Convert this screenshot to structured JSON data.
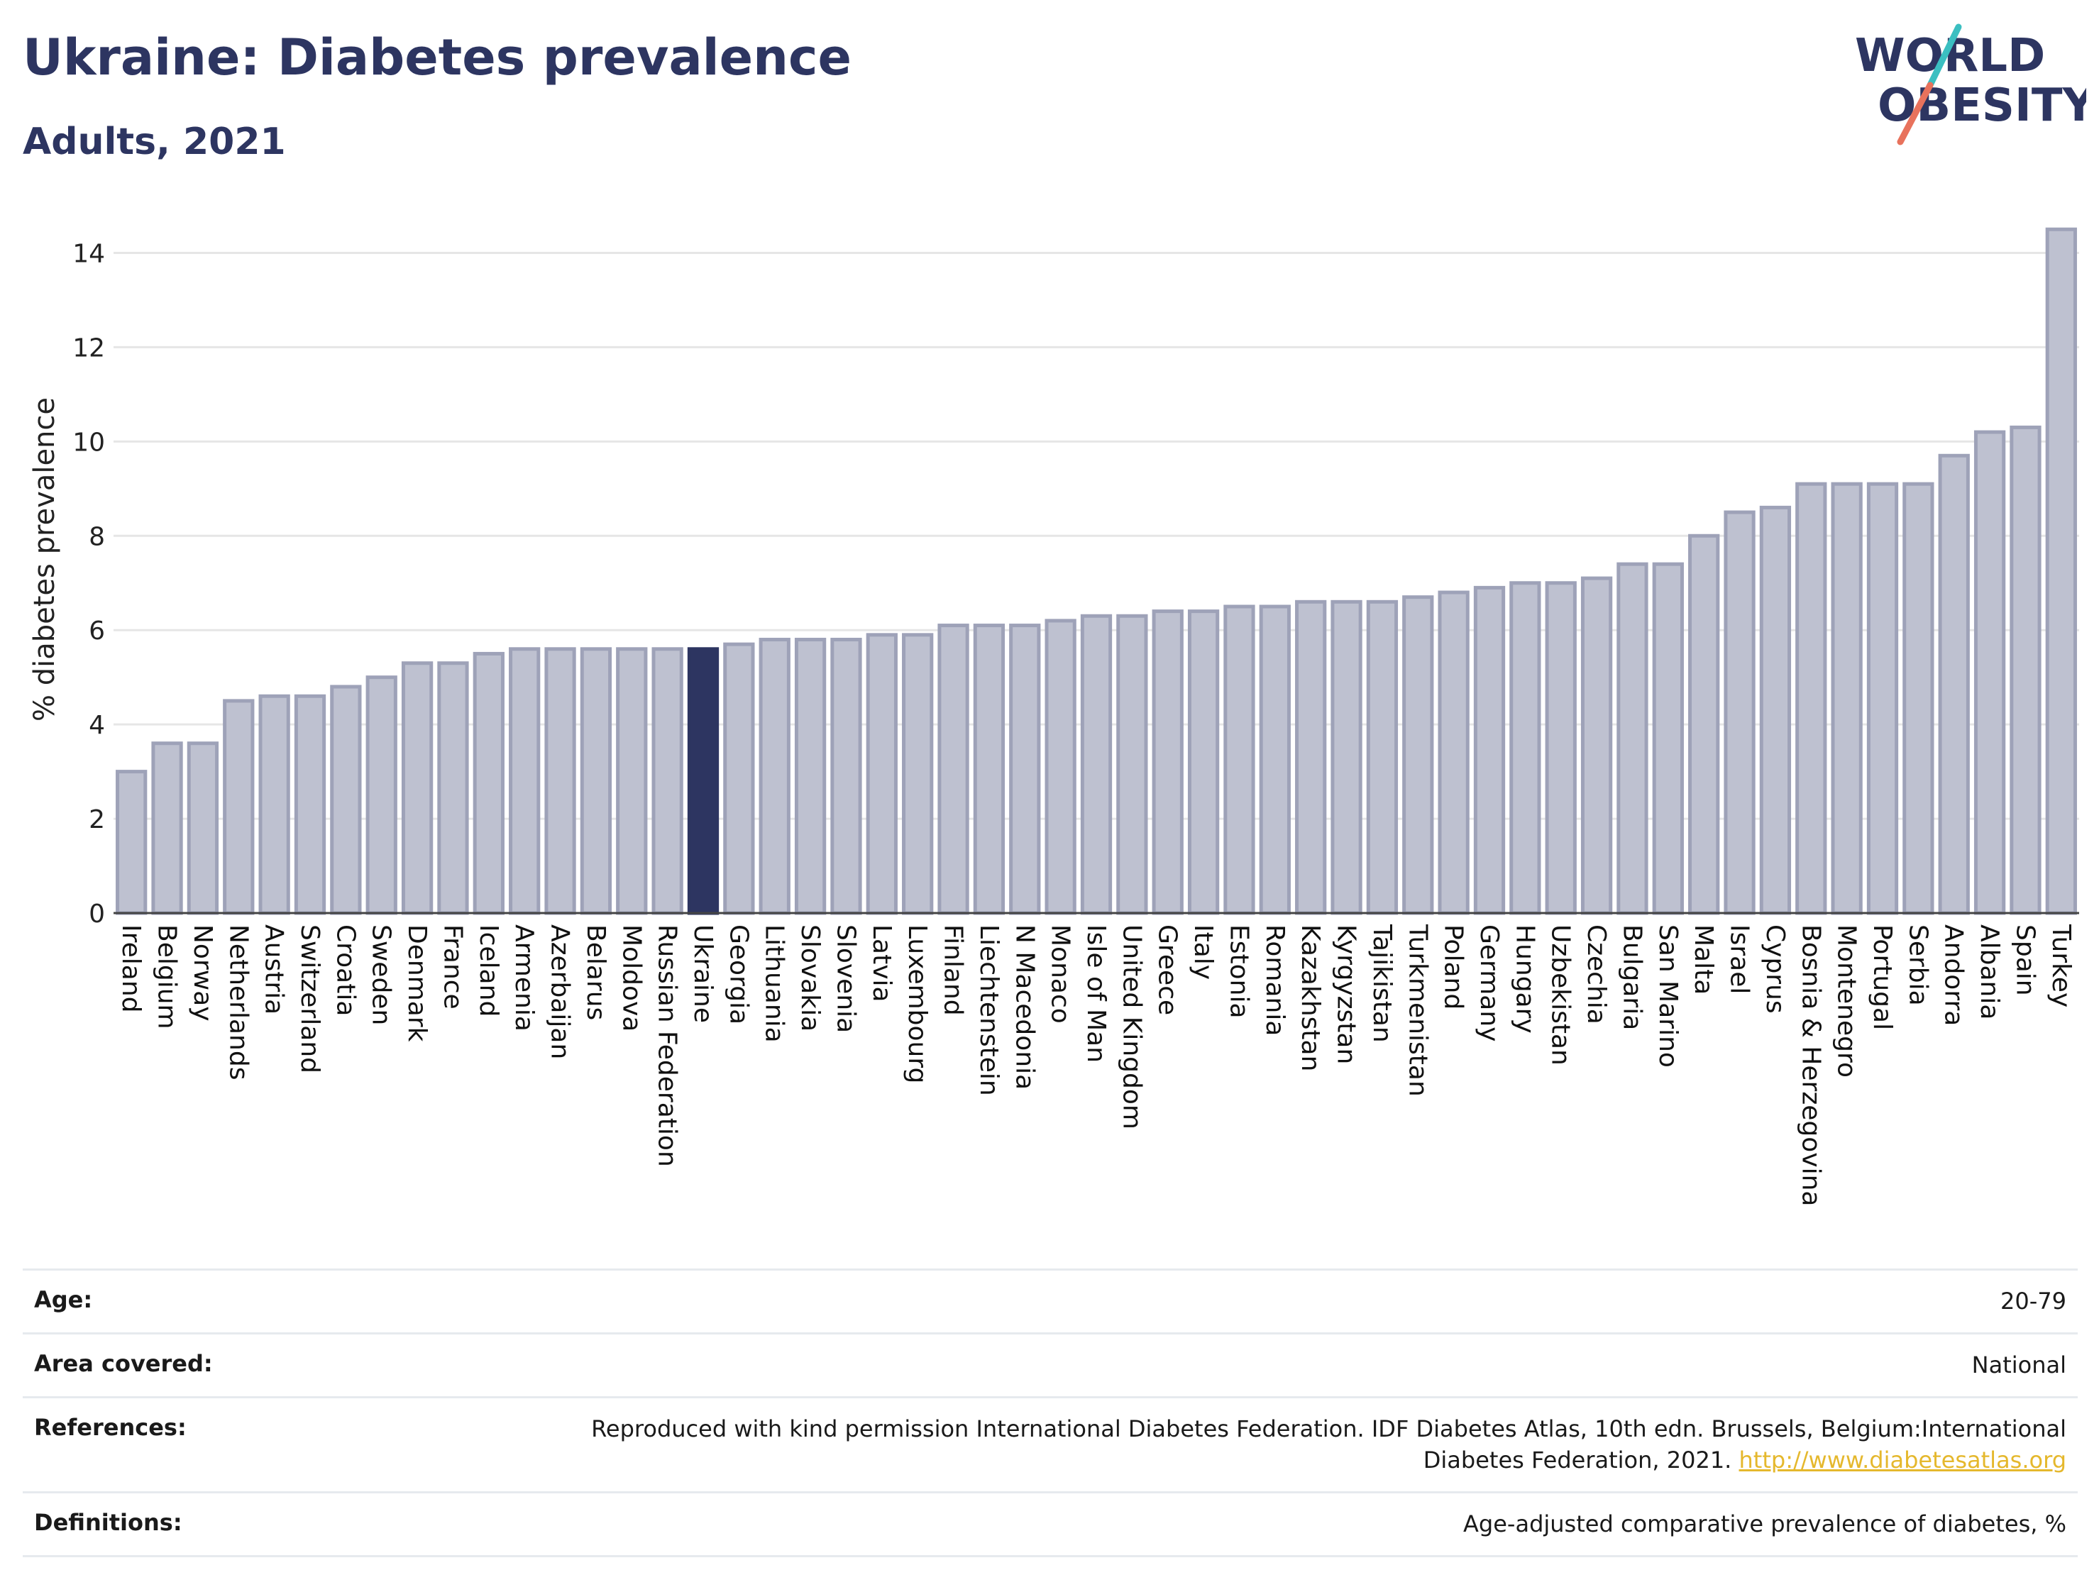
{
  "header": {
    "title": "Ukraine: Diabetes prevalence",
    "subtitle": "Adults, 2021"
  },
  "logo": {
    "line1": "WORLD",
    "line2": "OBESITY",
    "colors": {
      "text": "#2d3561",
      "teal": "#3bbfc1",
      "coral": "#e8725c"
    }
  },
  "chart_data": {
    "type": "bar",
    "title": "Ukraine: Diabetes prevalence",
    "subtitle": "Adults, 2021",
    "xlabel": "",
    "ylabel": "% diabetes prevalence",
    "ylim": [
      0,
      15
    ],
    "yticks": [
      0,
      2,
      4,
      6,
      8,
      10,
      12,
      14
    ],
    "grid": true,
    "highlight": "Ukraine",
    "colors": {
      "bar": "#bec1d0",
      "bar_edge": "#9ea2b8",
      "highlight": "#2d3561",
      "grid": "#e6e6e6"
    },
    "categories": [
      "Ireland",
      "Belgium",
      "Norway",
      "Netherlands",
      "Austria",
      "Switzerland",
      "Croatia",
      "Sweden",
      "Denmark",
      "France",
      "Iceland",
      "Armenia",
      "Azerbaijan",
      "Belarus",
      "Moldova",
      "Russian Federation",
      "Ukraine",
      "Georgia",
      "Lithuania",
      "Slovakia",
      "Slovenia",
      "Latvia",
      "Luxembourg",
      "Finland",
      "Liechtenstein",
      "N Macedonia",
      "Monaco",
      "Isle of Man",
      "United Kingdom",
      "Greece",
      "Italy",
      "Estonia",
      "Romania",
      "Kazakhstan",
      "Kyrgyzstan",
      "Tajikistan",
      "Turkmenistan",
      "Poland",
      "Germany",
      "Hungary",
      "Uzbekistan",
      "Czechia",
      "Bulgaria",
      "San Marino",
      "Malta",
      "Israel",
      "Cyprus",
      "Bosnia & Herzegovina",
      "Montenegro",
      "Portugal",
      "Serbia",
      "Andorra",
      "Albania",
      "Spain",
      "Turkey"
    ],
    "values": [
      3.0,
      3.6,
      3.6,
      4.5,
      4.6,
      4.6,
      4.8,
      5.0,
      5.3,
      5.3,
      5.5,
      5.6,
      5.6,
      5.6,
      5.6,
      5.6,
      5.6,
      5.7,
      5.8,
      5.8,
      5.8,
      5.9,
      5.9,
      6.1,
      6.1,
      6.1,
      6.2,
      6.3,
      6.3,
      6.4,
      6.4,
      6.5,
      6.5,
      6.6,
      6.6,
      6.6,
      6.7,
      6.8,
      6.9,
      7.0,
      7.0,
      7.1,
      7.4,
      7.4,
      8.0,
      8.5,
      8.6,
      9.1,
      9.1,
      9.1,
      9.1,
      9.7,
      10.2,
      10.3,
      14.5
    ]
  },
  "info": {
    "age_label": "Age:",
    "age_value": "20-79",
    "area_label": "Area covered:",
    "area_value": "National",
    "references_label": "References:",
    "references_text": "Reproduced with kind permission International Diabetes Federation.  IDF Diabetes Atlas, 10th edn. Brussels, Belgium:International Diabetes Federation, 2021.",
    "references_link": "http://www.diabetesatlas.org",
    "definitions_label": "Definitions:",
    "definitions_value": "Age-adjusted comparative prevalence of diabetes, %"
  }
}
